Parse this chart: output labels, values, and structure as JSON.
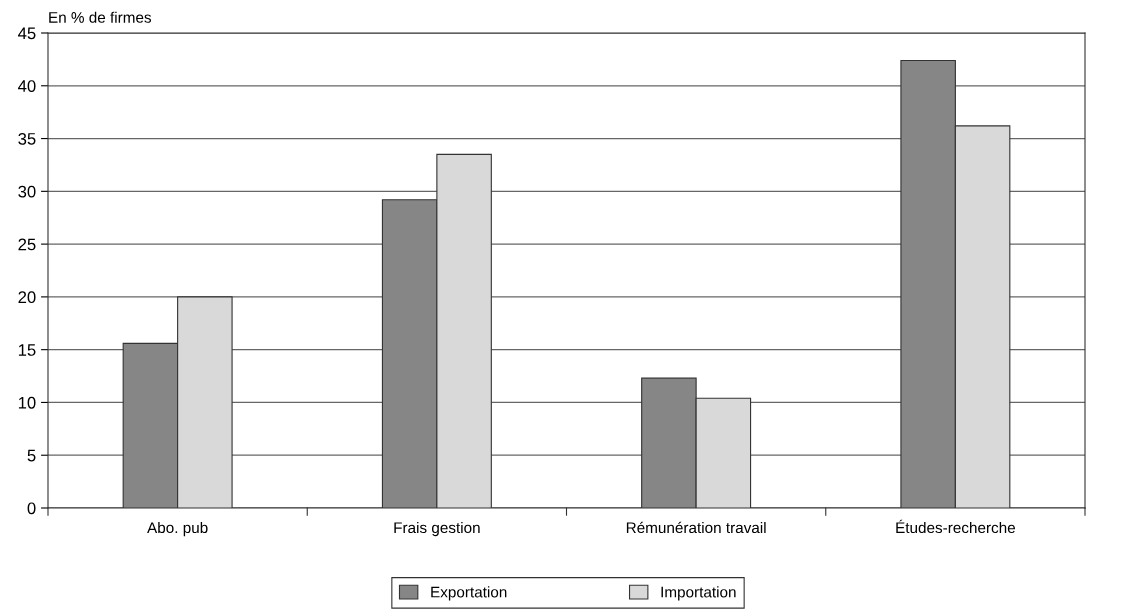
{
  "chart_data": {
    "type": "bar",
    "ylabel": "En % de firmes",
    "categories": [
      "Abo. pub",
      "Frais gestion",
      "Rémunération travail",
      "Études-recherche"
    ],
    "series": [
      {
        "name": "Exportation",
        "color": "#868686",
        "values": [
          15.6,
          29.2,
          12.3,
          42.4
        ]
      },
      {
        "name": "Importation",
        "color": "#d9d9d9",
        "values": [
          20.0,
          33.5,
          10.4,
          36.2
        ]
      }
    ],
    "ylim": [
      0,
      45
    ],
    "yticks": [
      0,
      5,
      10,
      15,
      20,
      25,
      30,
      35,
      40,
      45
    ],
    "grid": "y",
    "legend": "bottom"
  }
}
